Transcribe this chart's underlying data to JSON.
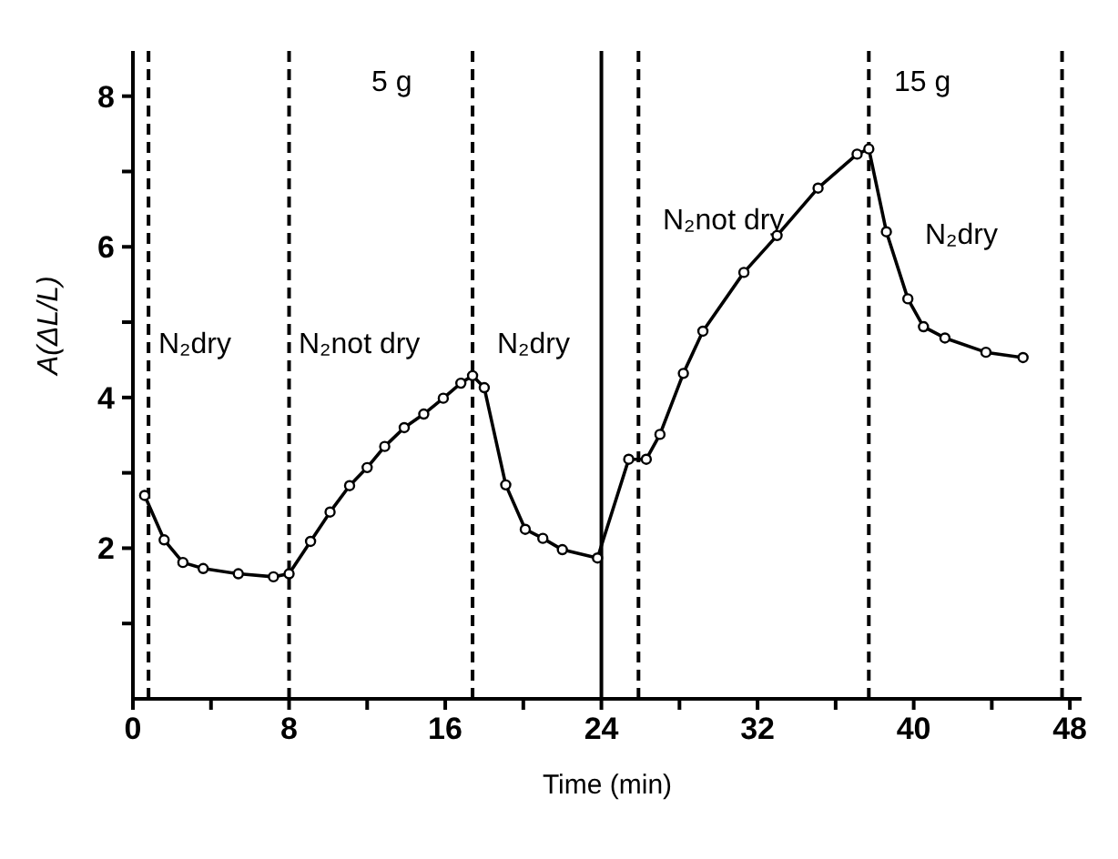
{
  "chart_data": {
    "type": "line",
    "xlabel": "Time (min)",
    "ylabel": "A(ΔL/L)",
    "x": [
      0.6,
      1.6,
      2.56,
      3.6,
      5.4,
      7.2,
      8,
      9.1,
      10.1,
      11.1,
      12.0,
      12.9,
      13.9,
      14.9,
      15.9,
      16.8,
      17.4,
      18.0,
      19.1,
      20.1,
      21.0,
      22.0,
      23.8,
      25.4,
      26.3,
      27.0,
      28.2,
      29.2,
      31.3,
      33.0,
      35.1,
      37.1,
      37.7,
      38.6,
      39.7,
      40.5,
      41.6,
      43.7,
      45.6
    ],
    "series": [
      {
        "color": "#000000",
        "values": [
          2.7,
          2.11,
          1.81,
          1.73,
          1.66,
          1.62,
          1.66,
          2.09,
          2.48,
          2.83,
          3.07,
          3.35,
          3.6,
          3.78,
          3.99,
          4.19,
          4.29,
          4.13,
          2.84,
          2.25,
          2.13,
          1.98,
          1.87,
          3.18,
          3.18,
          3.51,
          4.32,
          4.88,
          5.66,
          6.15,
          6.78,
          7.23,
          7.3,
          6.2,
          5.31,
          4.94,
          4.79,
          4.6,
          4.53
        ]
      }
    ],
    "xlim": [
      0,
      48.6
    ],
    "xticks": [
      0,
      {
        "value": 4,
        "label": null
      },
      8,
      {
        "value": 12,
        "label": null
      },
      16,
      {
        "value": 20,
        "label": null
      },
      24,
      {
        "value": 28,
        "label": null
      },
      32,
      {
        "value": 36,
        "label": null
      },
      40,
      {
        "value": 44,
        "label": null
      },
      48
    ],
    "ylim": [
      0,
      8.6
    ],
    "yticks": [
      {
        "value": 1,
        "label": null
      },
      2,
      {
        "value": 3,
        "label": null
      },
      4,
      {
        "value": 5,
        "label": null
      },
      6,
      {
        "value": 7,
        "label": null
      },
      8
    ],
    "marker": "circle",
    "line_style": "solid",
    "ref_lines": [
      {
        "axis": "x",
        "value": 0.8,
        "line_style": "dashed"
      },
      {
        "axis": "x",
        "value": 8,
        "line_style": "dashed"
      },
      {
        "axis": "x",
        "value": 17.4,
        "line_style": "dashed"
      },
      {
        "axis": "x",
        "value": 24,
        "line_style": "solid"
      },
      {
        "axis": "x",
        "value": 25.9,
        "line_style": "dashed"
      },
      {
        "axis": "x",
        "value": 37.7,
        "line_style": "dashed"
      },
      {
        "axis": "x",
        "value": 47.6,
        "line_style": "dashed"
      }
    ],
    "annotations": [
      "5 g",
      "15 g",
      "N₂dry",
      "N₂not dry",
      "N₂dry",
      "N₂not dry",
      "N₂dry"
    ]
  }
}
